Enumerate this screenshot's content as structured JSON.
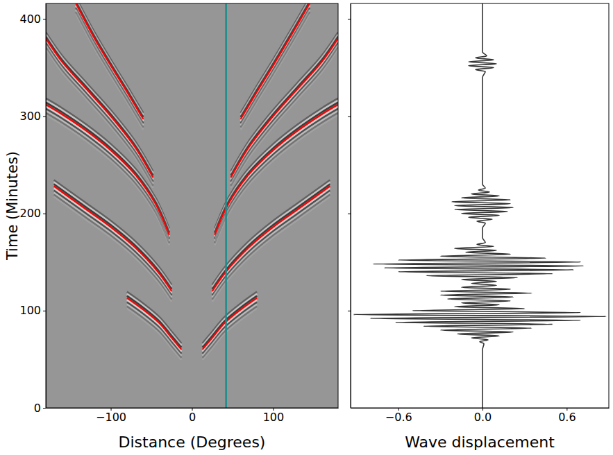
{
  "chart_data": [
    {
      "type": "line",
      "x_label": "Distance (Degrees)",
      "y_label": "Time (Minutes)",
      "xlim": [
        -180,
        180
      ],
      "ylim": [
        0,
        416
      ],
      "xticks": [
        {
          "value": -100,
          "label": "−100"
        },
        0,
        100
      ],
      "yticks": [
        0,
        100,
        200,
        300,
        400
      ],
      "color": "#ff0000",
      "series": [
        {
          "x": [
            13,
            25,
            40,
            60,
            80
          ],
          "values": [
            60,
            72,
            87,
            101,
            113
          ]
        },
        {
          "x": [
            -13,
            -25,
            -40,
            -60,
            -80
          ],
          "values": [
            60,
            72,
            87,
            101,
            113
          ]
        },
        {
          "x": [
            25,
            42,
            70,
            100,
            130,
            170
          ],
          "values": [
            120,
            140,
            165,
            186,
            204,
            228
          ]
        },
        {
          "x": [
            -25,
            -42,
            -70,
            -100,
            -130,
            -170
          ],
          "values": [
            120,
            140,
            165,
            186,
            204,
            228
          ]
        },
        {
          "x": [
            28,
            45,
            70,
            100,
            130,
            160,
            180
          ],
          "values": [
            178,
            210,
            240,
            265,
            285,
            302,
            312
          ]
        },
        {
          "x": [
            -28,
            -45,
            -70,
            -100,
            -130,
            -160,
            -180
          ],
          "values": [
            178,
            210,
            240,
            265,
            285,
            302,
            312
          ]
        },
        {
          "x": [
            48,
            70,
            100,
            130,
            160,
            180
          ],
          "values": [
            237,
            268,
            300,
            328,
            356,
            380
          ]
        },
        {
          "x": [
            -48,
            -70,
            -100,
            -130,
            -160,
            -180
          ],
          "values": [
            237,
            268,
            300,
            328,
            356,
            380
          ]
        },
        {
          "x": [
            60,
            80,
            100,
            120,
            145
          ],
          "values": [
            297,
            325,
            352,
            380,
            416
          ]
        },
        {
          "x": [
            -60,
            -80,
            -100,
            -120,
            -143
          ],
          "values": [
            297,
            325,
            352,
            380,
            416
          ]
        }
      ],
      "vlines": [
        {
          "value": 42,
          "color": "#1a8c8c"
        }
      ]
    },
    {
      "type": "line",
      "x_label": "Wave displacement",
      "xlim": [
        -0.94,
        0.9
      ],
      "ylim": [
        0,
        416
      ],
      "xticks": [
        {
          "value": -0.6,
          "label": "−0.6"
        },
        {
          "value": 0,
          "label": "0.0"
        },
        {
          "value": 0.6,
          "label": "0.6"
        }
      ],
      "yticks": [
        100,
        200,
        300,
        400
      ],
      "tick_labels": "x",
      "color": "#333333",
      "series": [
        {
          "x": [
            0,
            0,
            0,
            0,
            0.01,
            -0.02,
            0.04,
            -0.08,
            0.12,
            -0.18,
            0.22,
            -0.3,
            0.35,
            -0.42,
            0.5,
            -0.62,
            0.7,
            -0.8,
            0.88,
            -0.92,
            0.7,
            -0.5,
            0.3,
            -0.2,
            0.12,
            -0.15,
            0.2,
            -0.25,
            0.22,
            -0.3,
            0.35,
            -0.3,
            0.2,
            -0.15,
            0.1,
            -0.08,
            0.1,
            -0.15,
            0.25,
            -0.4,
            0.5,
            -0.6,
            0.65,
            -0.7,
            0.72,
            -0.78,
            0.7,
            -0.6,
            0.45,
            -0.3,
            0.2,
            -0.12,
            0.1,
            -0.2,
            0.08,
            -0.04,
            0.02,
            0,
            0,
            0.02,
            -0.04,
            0.07,
            -0.1,
            0.12,
            -0.15,
            0.18,
            -0.2,
            0.22,
            -0.2,
            0.2,
            -0.22,
            0.2,
            -0.15,
            0.12,
            -0.08,
            0.05,
            -0.03,
            0.02,
            0,
            0,
            0,
            0,
            0.02,
            -0.05,
            0.08,
            -0.1,
            0.1,
            -0.1,
            0.08,
            -0.05,
            0.03,
            0,
            0,
            0
          ],
          "values": [
            0,
            20,
            40,
            60,
            66,
            68,
            70,
            72,
            74,
            76,
            78,
            80,
            82,
            84,
            86,
            88,
            90,
            92,
            94,
            96,
            98,
            100,
            102,
            104,
            106,
            108,
            110,
            112,
            114,
            116,
            118,
            120,
            122,
            124,
            126,
            128,
            130,
            132,
            134,
            136,
            138,
            140,
            142,
            144,
            146,
            148,
            150,
            152,
            154,
            156,
            158,
            160,
            162,
            164,
            166,
            168,
            170,
            175,
            185,
            190,
            192,
            194,
            196,
            198,
            200,
            202,
            204,
            206,
            208,
            210,
            212,
            214,
            216,
            218,
            220,
            222,
            224,
            226,
            230,
            260,
            300,
            340,
            346,
            348,
            350,
            352,
            354,
            356,
            358,
            360,
            362,
            366,
            400,
            416
          ]
        }
      ]
    }
  ]
}
